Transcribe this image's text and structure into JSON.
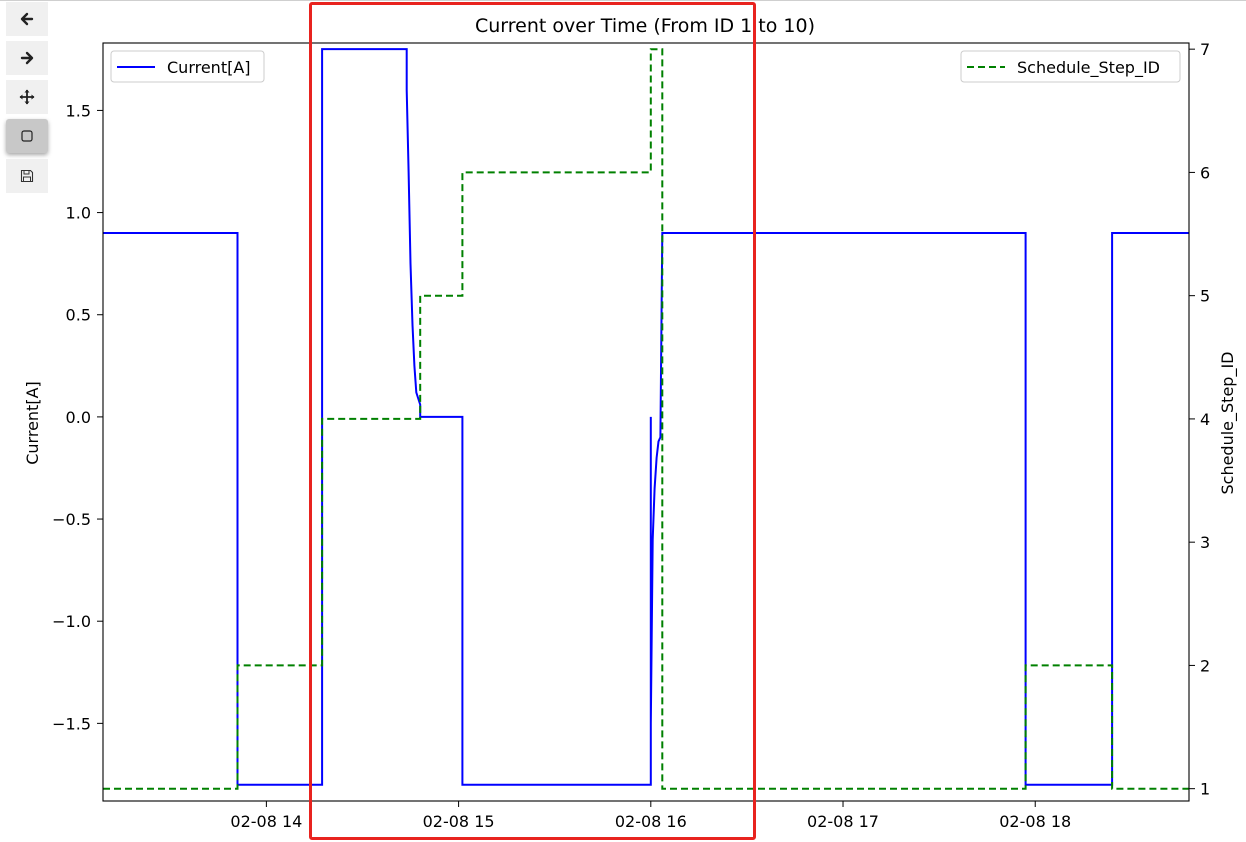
{
  "toolbar": {
    "tools": [
      {
        "name": "back",
        "icon": "arrow-left-icon"
      },
      {
        "name": "forward",
        "icon": "arrow-right-icon"
      },
      {
        "name": "pan",
        "icon": "move-cross-icon"
      },
      {
        "name": "zoom",
        "icon": "zoom-rect-icon",
        "active": true
      },
      {
        "name": "save",
        "icon": "floppy-disk-icon"
      }
    ]
  },
  "chart_data": {
    "type": "line",
    "title": "Current over Time (From ID 1 to 10)",
    "ylabel": "Current[A]",
    "y2label": "Schedule_Step_ID",
    "xlabel": "",
    "xlim": [
      13.15,
      18.8
    ],
    "ylim": [
      -1.88,
      1.83
    ],
    "y2lim": [
      0.9,
      7.05
    ],
    "x_ticks": [
      14,
      15,
      16,
      17,
      18
    ],
    "x_tick_labels": [
      "02-08 14",
      "02-08 15",
      "02-08 16",
      "02-08 17",
      "02-08 18"
    ],
    "y_ticks": [
      1.5,
      1.0,
      0.5,
      0.0,
      -0.5,
      -1.0,
      -1.5
    ],
    "y_tick_labels": [
      "1.5",
      "1.0",
      "0.5",
      "0.0",
      "−0.5",
      "−1.0",
      "−1.5"
    ],
    "y2_ticks": [
      1,
      2,
      3,
      4,
      5,
      6,
      7
    ],
    "y2_tick_labels": [
      "1",
      "2",
      "3",
      "4",
      "5",
      "6",
      "7"
    ],
    "grid": false,
    "legend_left": "top-left",
    "legend_right": "top-right",
    "series": [
      {
        "name": "Current[A]",
        "axis": "left",
        "color": "#0000ff",
        "style": "solid",
        "points": [
          [
            13.15,
            0.9
          ],
          [
            13.85,
            0.9
          ],
          [
            13.85,
            -1.8
          ],
          [
            14.29,
            -1.8
          ],
          [
            14.29,
            1.8
          ],
          [
            14.73,
            1.8
          ],
          [
            14.73,
            1.6
          ],
          [
            14.74,
            1.2
          ],
          [
            14.75,
            0.75
          ],
          [
            14.76,
            0.45
          ],
          [
            14.77,
            0.25
          ],
          [
            14.78,
            0.12
          ],
          [
            14.8,
            0.06
          ],
          [
            14.8,
            0.0
          ],
          [
            15.02,
            0.0
          ],
          [
            15.02,
            -1.8
          ],
          [
            16.0,
            -1.8
          ],
          [
            16.0,
            0.0
          ],
          [
            16.0,
            -1.5
          ],
          [
            16.01,
            -0.6
          ],
          [
            16.02,
            -0.35
          ],
          [
            16.03,
            -0.2
          ],
          [
            16.04,
            -0.12
          ],
          [
            16.05,
            -0.1
          ],
          [
            16.06,
            0.9
          ],
          [
            17.95,
            0.9
          ],
          [
            17.95,
            -1.8
          ],
          [
            18.4,
            -1.8
          ],
          [
            18.4,
            0.9
          ],
          [
            18.8,
            0.9
          ]
        ]
      },
      {
        "name": "Schedule_Step_ID",
        "axis": "right",
        "color": "#008000",
        "style": "dashed",
        "points": [
          [
            13.15,
            1
          ],
          [
            13.85,
            1
          ],
          [
            13.85,
            2
          ],
          [
            14.29,
            2
          ],
          [
            14.29,
            4
          ],
          [
            14.8,
            4
          ],
          [
            14.8,
            5
          ],
          [
            15.02,
            5
          ],
          [
            15.02,
            6
          ],
          [
            16.0,
            6
          ],
          [
            16.0,
            7
          ],
          [
            16.06,
            7
          ],
          [
            16.06,
            1
          ],
          [
            17.95,
            1
          ],
          [
            17.95,
            2
          ],
          [
            18.4,
            2
          ],
          [
            18.4,
            1
          ],
          [
            18.8,
            1
          ]
        ]
      }
    ]
  }
}
